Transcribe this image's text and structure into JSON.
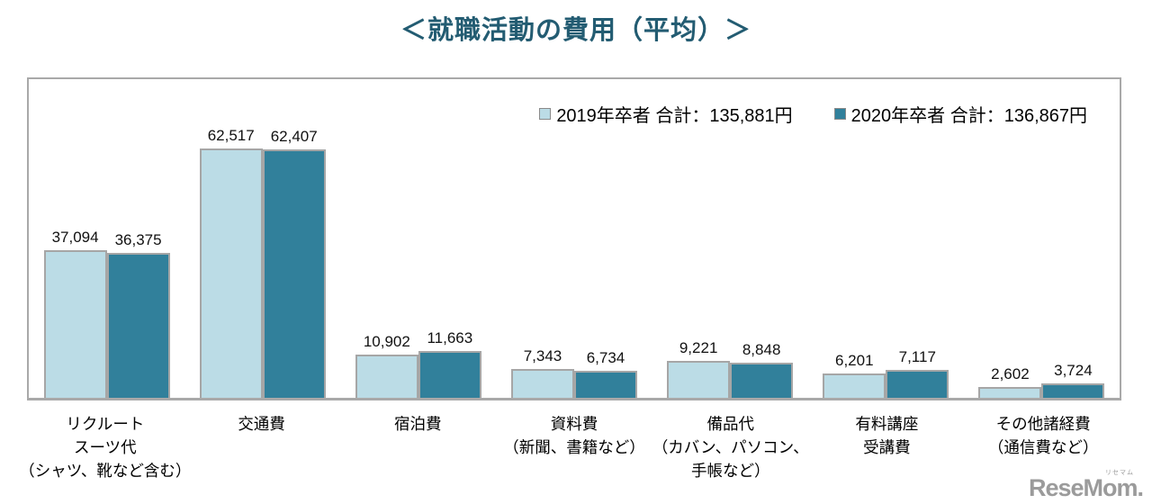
{
  "page": {
    "title": "＜就職活動の費用（平均）＞"
  },
  "colors": {
    "title": "#235C72",
    "series_2019_fill": "#BBDCE6",
    "series_2020_fill": "#31809B",
    "bar_border": "#A6A6A6",
    "frame_border": "#A9A9A9",
    "logo_gray": "#9B9B9B"
  },
  "chart_data": {
    "type": "bar",
    "title": "＜就職活動の費用（平均）＞",
    "categories": [
      [
        "リクルート",
        "スーツ代",
        "（シャツ、靴など含む）"
      ],
      [
        "交通費"
      ],
      [
        "宿泊費"
      ],
      [
        "資料費",
        "（新聞、書籍など）"
      ],
      [
        "備品代",
        "（カバン、パソコン、",
        "手帳など）"
      ],
      [
        "有料講座",
        "受講費"
      ],
      [
        "その他諸経費",
        "（通信費など）"
      ]
    ],
    "series": [
      {
        "name": "2019年卒者 合計：135,881円",
        "year": "2019",
        "color": "#BBDCE6",
        "values": [
          37094,
          62517,
          10902,
          7343,
          9221,
          6201,
          2602
        ]
      },
      {
        "name": "2020年卒者 合計：136,867円",
        "year": "2020",
        "color": "#31809B",
        "values": [
          36375,
          62407,
          11663,
          6734,
          8848,
          7117,
          3724
        ]
      }
    ],
    "ylim": [
      0,
      80000
    ],
    "grid": false,
    "y_axis_visible": false,
    "legend_position": "top-right-inside",
    "value_labels": "above-bars-comma-formatted"
  },
  "watermark": {
    "text": "ReseMom.",
    "ruby": "リセマム"
  }
}
